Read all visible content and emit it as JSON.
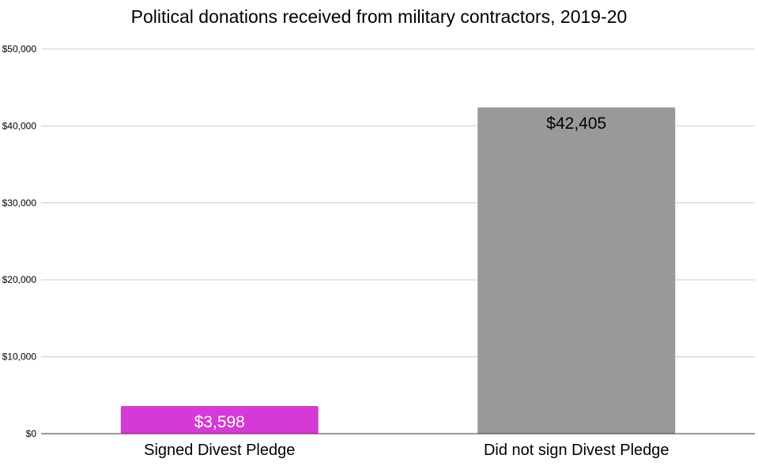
{
  "chart_data": {
    "type": "bar",
    "title": "Political donations received from military contractors, 2019-20",
    "xlabel": "",
    "ylabel": "",
    "categories": [
      "Signed Divest Pledge",
      "Did not sign Divest Pledge"
    ],
    "values": [
      3598,
      42405
    ],
    "data_labels": [
      "$3,598",
      "$42,405"
    ],
    "bar_colors": [
      "#d63ad6",
      "#999999"
    ],
    "data_label_colors": [
      "#ffffff",
      "#000000"
    ],
    "ylim": [
      0,
      50000
    ],
    "yticks": [
      0,
      10000,
      20000,
      30000,
      40000,
      50000
    ],
    "ytick_labels": [
      "$0",
      "$10,000",
      "$20,000",
      "$30,000",
      "$40,000",
      "$50,000"
    ],
    "grid": true,
    "legend": "none"
  }
}
